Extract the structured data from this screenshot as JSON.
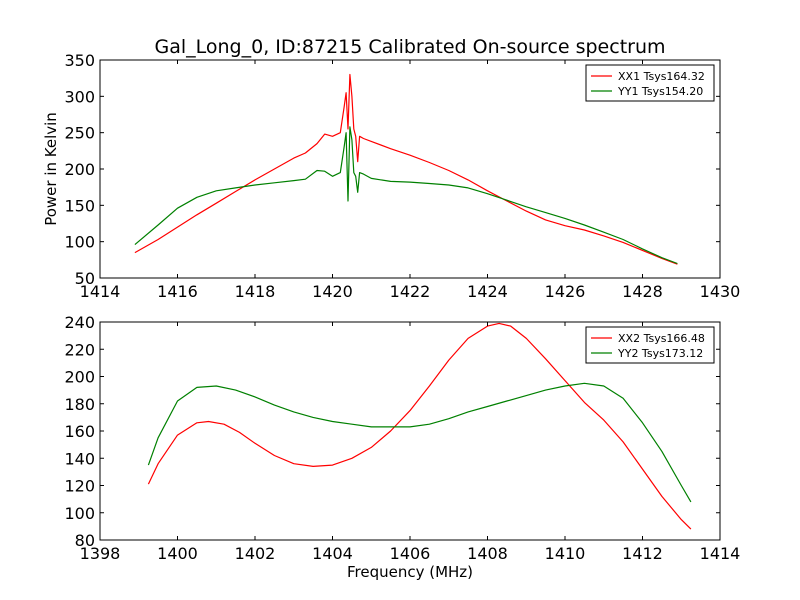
{
  "chart_data": [
    {
      "type": "line",
      "title": "Gal_Long_0, ID:87215 Calibrated On-source spectrum",
      "xlabel": "",
      "ylabel": "Power in Kelvin",
      "xlim": [
        1414,
        1430
      ],
      "ylim": [
        50,
        350
      ],
      "xticks": [
        1414,
        1416,
        1418,
        1420,
        1422,
        1424,
        1426,
        1428,
        1430
      ],
      "yticks": [
        50,
        100,
        150,
        200,
        250,
        300,
        350
      ],
      "legend_position": "top-right",
      "series": [
        {
          "name": "XX1 Tsys164.32",
          "color": "#ff0000",
          "x": [
            1414.9,
            1415.5,
            1416.0,
            1416.5,
            1417.0,
            1417.5,
            1418.0,
            1418.5,
            1419.0,
            1419.3,
            1419.6,
            1419.8,
            1420.0,
            1420.2,
            1420.3,
            1420.35,
            1420.4,
            1420.45,
            1420.5,
            1420.55,
            1420.6,
            1420.65,
            1420.7,
            1420.8,
            1421.0,
            1421.5,
            1422.0,
            1422.5,
            1423.0,
            1423.5,
            1424.0,
            1424.5,
            1425.0,
            1425.5,
            1426.0,
            1426.5,
            1427.0,
            1427.5,
            1428.0,
            1428.5,
            1428.9
          ],
          "y": [
            85,
            103,
            120,
            137,
            153,
            169,
            185,
            200,
            215,
            222,
            235,
            248,
            245,
            250,
            285,
            305,
            255,
            330,
            300,
            255,
            245,
            210,
            245,
            242,
            238,
            228,
            219,
            209,
            198,
            185,
            170,
            156,
            142,
            130,
            122,
            116,
            108,
            99,
            88,
            77,
            69
          ]
        },
        {
          "name": "YY1 Tsys154.20",
          "color": "#008000",
          "x": [
            1414.9,
            1415.5,
            1416.0,
            1416.5,
            1417.0,
            1417.5,
            1418.0,
            1418.5,
            1419.0,
            1419.3,
            1419.6,
            1419.8,
            1420.0,
            1420.2,
            1420.3,
            1420.35,
            1420.4,
            1420.45,
            1420.5,
            1420.55,
            1420.6,
            1420.65,
            1420.7,
            1420.8,
            1421.0,
            1421.5,
            1422.0,
            1422.5,
            1423.0,
            1423.5,
            1424.0,
            1424.5,
            1425.0,
            1425.5,
            1426.0,
            1426.5,
            1427.0,
            1427.5,
            1428.0,
            1428.5,
            1428.9
          ],
          "y": [
            96,
            123,
            146,
            161,
            170,
            174,
            178,
            181,
            184,
            186,
            198,
            197,
            190,
            195,
            230,
            250,
            156,
            258,
            240,
            195,
            190,
            168,
            195,
            193,
            187,
            183,
            182,
            180,
            178,
            174,
            166,
            157,
            148,
            140,
            132,
            123,
            113,
            103,
            90,
            78,
            70
          ]
        }
      ]
    },
    {
      "type": "line",
      "title": "",
      "xlabel": "Frequency (MHz)",
      "ylabel": "",
      "xlim": [
        1398,
        1414
      ],
      "ylim": [
        80,
        240
      ],
      "xticks": [
        1398,
        1400,
        1402,
        1404,
        1406,
        1408,
        1410,
        1412,
        1414
      ],
      "yticks": [
        80,
        100,
        120,
        140,
        160,
        180,
        200,
        220,
        240
      ],
      "legend_position": "top-right",
      "series": [
        {
          "name": "XX2 Tsys166.48",
          "color": "#ff0000",
          "x": [
            1399.25,
            1399.5,
            1400.0,
            1400.5,
            1400.8,
            1401.2,
            1401.6,
            1402.0,
            1402.5,
            1403.0,
            1403.5,
            1404.0,
            1404.5,
            1405.0,
            1405.5,
            1406.0,
            1406.5,
            1407.0,
            1407.5,
            1408.0,
            1408.3,
            1408.6,
            1409.0,
            1409.5,
            1410.0,
            1410.5,
            1411.0,
            1411.5,
            1412.0,
            1412.5,
            1413.0,
            1413.25
          ],
          "y": [
            121,
            136,
            157,
            166,
            167,
            165,
            159,
            151,
            142,
            136,
            134,
            135,
            140,
            148,
            160,
            175,
            193,
            212,
            228,
            237,
            239,
            237,
            228,
            213,
            197,
            181,
            168,
            152,
            132,
            112,
            95,
            88
          ]
        },
        {
          "name": "YY2 Tsys173.12",
          "color": "#008000",
          "x": [
            1399.25,
            1399.5,
            1400.0,
            1400.5,
            1401.0,
            1401.5,
            1402.0,
            1402.5,
            1403.0,
            1403.5,
            1404.0,
            1404.5,
            1405.0,
            1405.5,
            1406.0,
            1406.5,
            1407.0,
            1407.5,
            1408.0,
            1408.5,
            1409.0,
            1409.5,
            1410.0,
            1410.5,
            1411.0,
            1411.5,
            1412.0,
            1412.5,
            1413.0,
            1413.25
          ],
          "y": [
            135,
            155,
            182,
            192,
            193,
            190,
            185,
            179,
            174,
            170,
            167,
            165,
            163,
            163,
            163,
            165,
            169,
            174,
            178,
            182,
            186,
            190,
            193,
            195,
            193,
            184,
            166,
            145,
            120,
            108
          ]
        }
      ]
    }
  ]
}
